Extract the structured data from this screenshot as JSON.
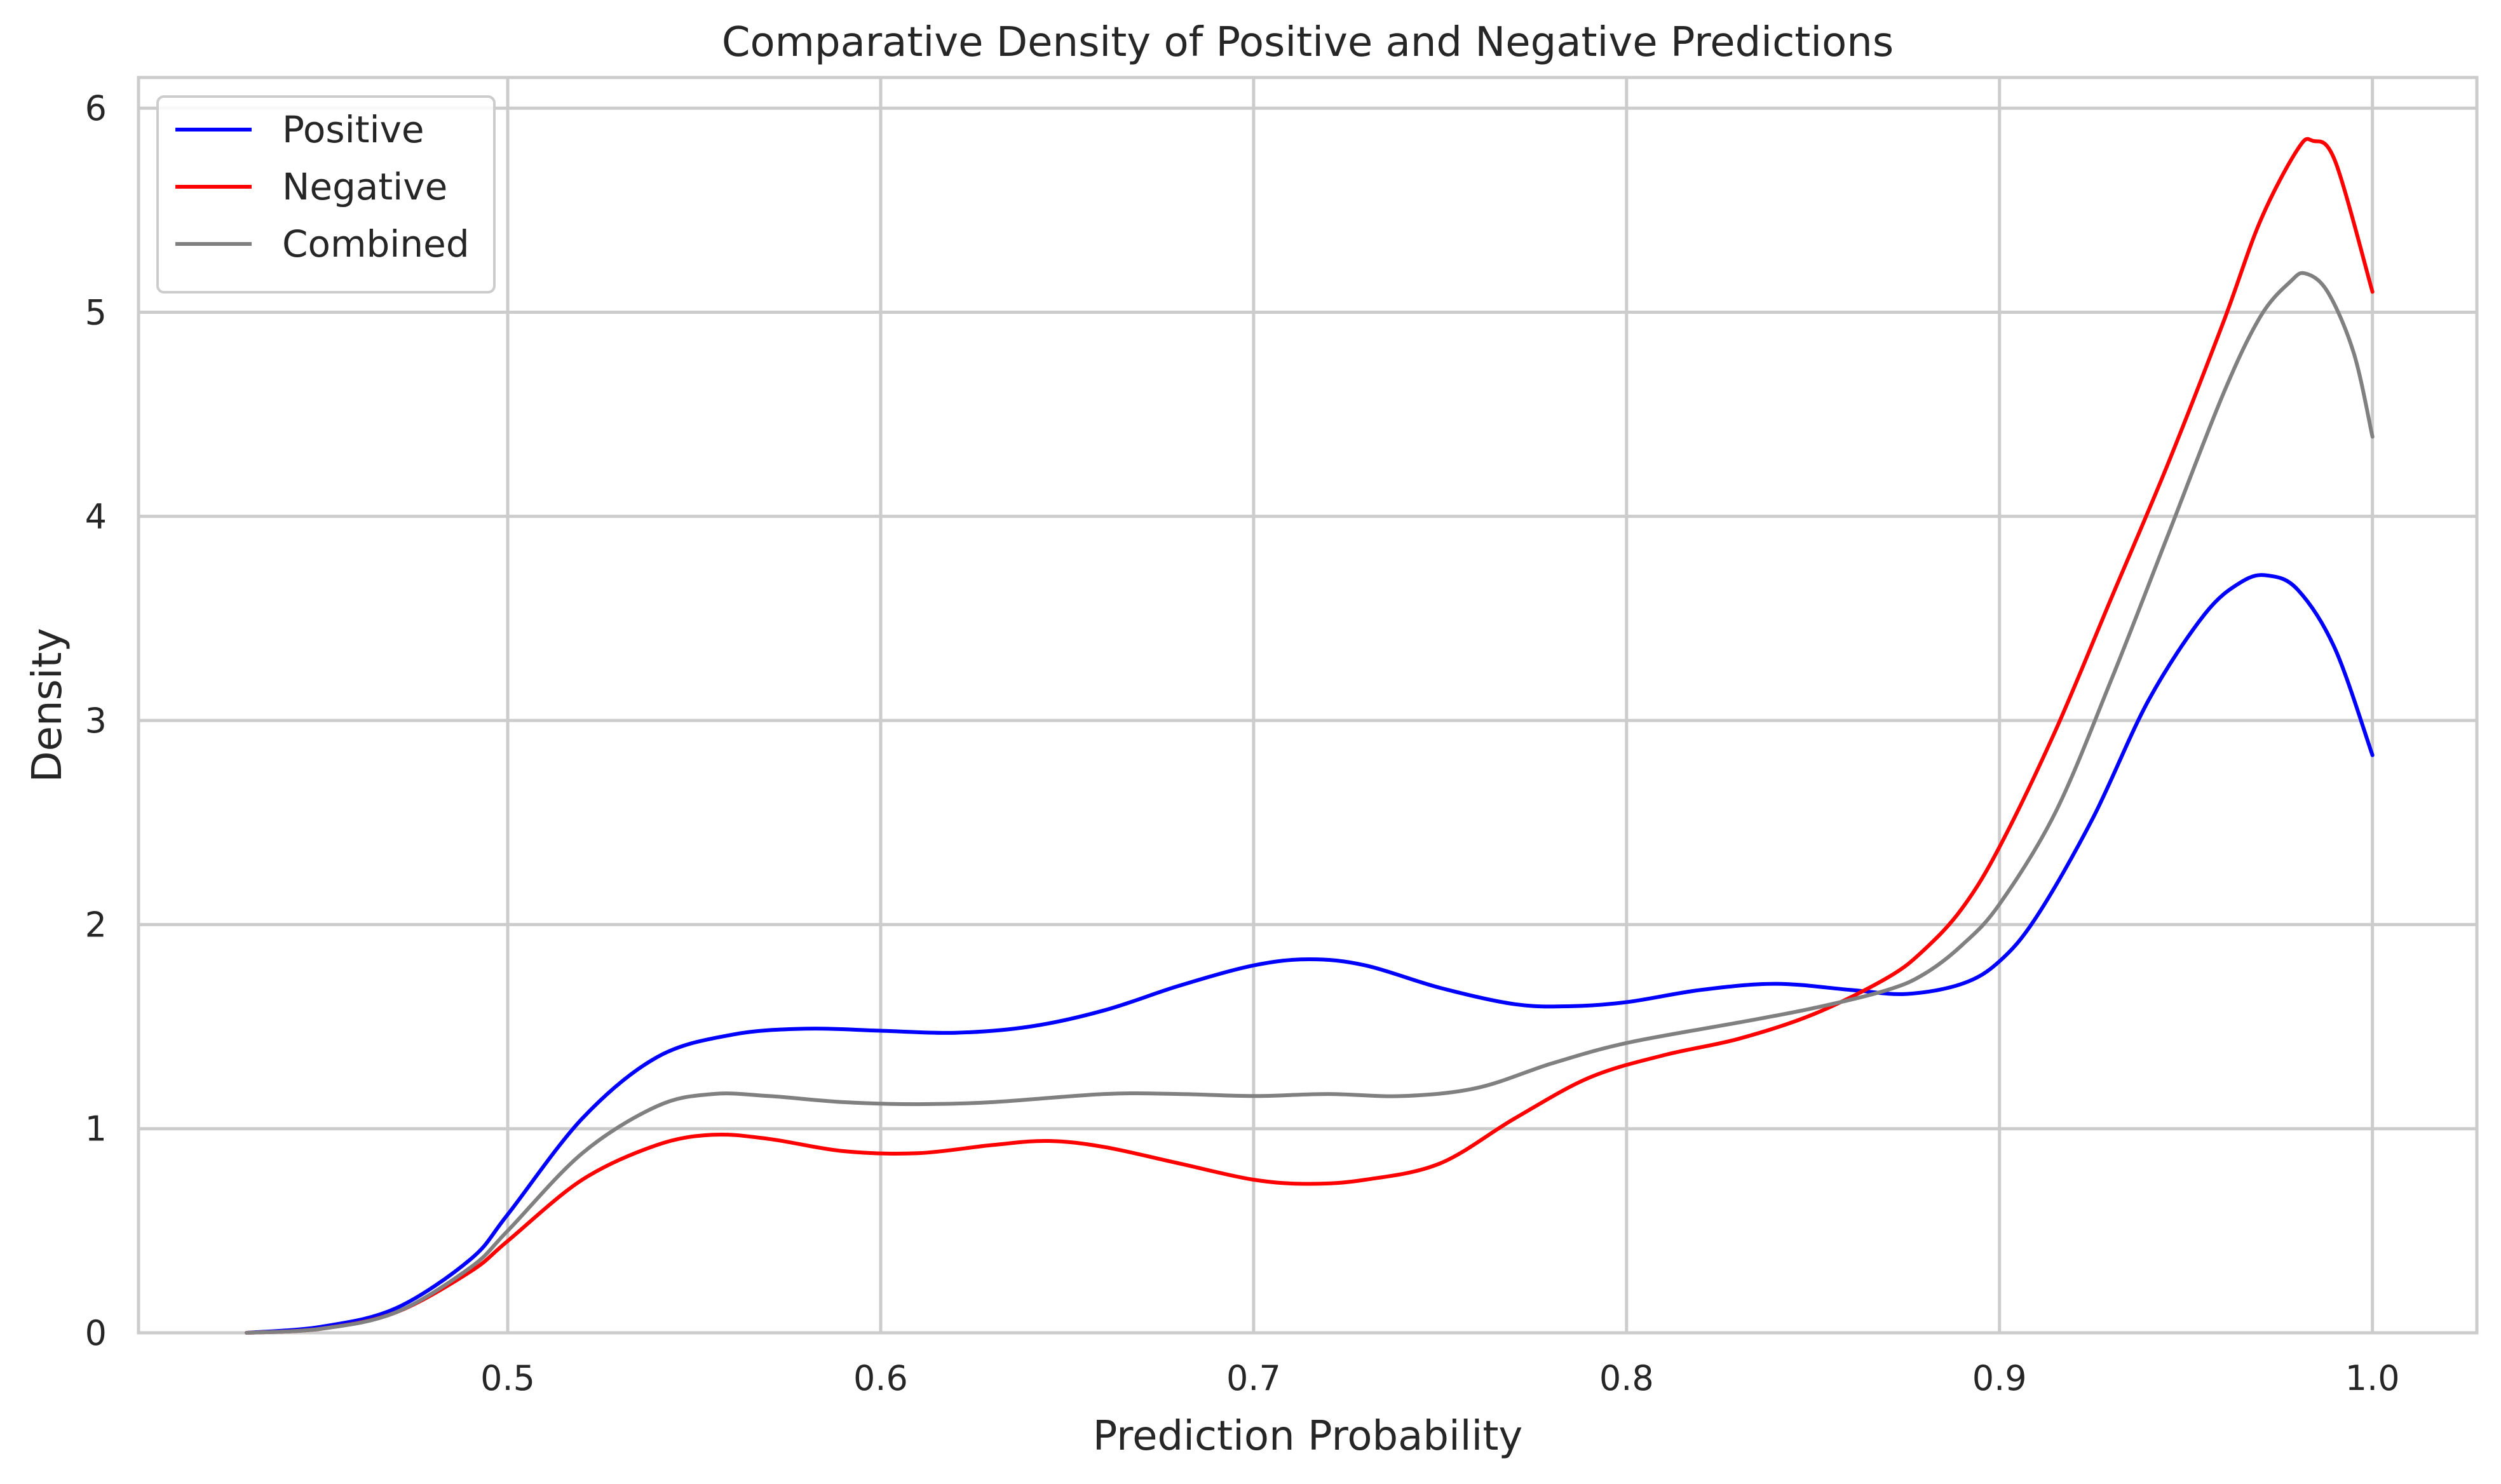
{
  "chart_data": {
    "type": "line",
    "title": "Comparative Density of Positive and Negative Predictions",
    "xlabel": "Prediction Probability",
    "ylabel": "Density",
    "xlim": [
      0.401,
      1.028
    ],
    "ylim": [
      0,
      6.15
    ],
    "xticks": [
      0.5,
      0.6,
      0.7,
      0.8,
      0.9,
      1.0
    ],
    "xtick_labels": [
      "0.5",
      "0.6",
      "0.7",
      "0.8",
      "0.9",
      "1.0"
    ],
    "yticks": [
      0,
      1,
      2,
      3,
      4,
      5,
      6
    ],
    "ytick_labels": [
      "0",
      "1",
      "2",
      "3",
      "4",
      "5",
      "6"
    ],
    "grid": true,
    "legend_position": "top-left",
    "series": [
      {
        "name": "Positive",
        "color": "#0000ff",
        "points": [
          [
            0.43,
            0.0
          ],
          [
            0.45,
            0.03
          ],
          [
            0.47,
            0.12
          ],
          [
            0.49,
            0.36
          ],
          [
            0.5,
            0.58
          ],
          [
            0.52,
            1.05
          ],
          [
            0.54,
            1.35
          ],
          [
            0.56,
            1.46
          ],
          [
            0.58,
            1.49
          ],
          [
            0.6,
            1.48
          ],
          [
            0.62,
            1.47
          ],
          [
            0.64,
            1.5
          ],
          [
            0.66,
            1.58
          ],
          [
            0.68,
            1.7
          ],
          [
            0.7,
            1.8
          ],
          [
            0.715,
            1.83
          ],
          [
            0.73,
            1.8
          ],
          [
            0.75,
            1.69
          ],
          [
            0.77,
            1.61
          ],
          [
            0.785,
            1.6
          ],
          [
            0.8,
            1.62
          ],
          [
            0.82,
            1.68
          ],
          [
            0.84,
            1.71
          ],
          [
            0.86,
            1.68
          ],
          [
            0.875,
            1.66
          ],
          [
            0.89,
            1.71
          ],
          [
            0.9,
            1.82
          ],
          [
            0.91,
            2.04
          ],
          [
            0.925,
            2.52
          ],
          [
            0.94,
            3.1
          ],
          [
            0.955,
            3.52
          ],
          [
            0.965,
            3.68
          ],
          [
            0.972,
            3.71
          ],
          [
            0.98,
            3.64
          ],
          [
            0.99,
            3.35
          ],
          [
            1.0,
            2.83
          ]
        ]
      },
      {
        "name": "Negative",
        "color": "#ff0000",
        "points": [
          [
            0.43,
            0.0
          ],
          [
            0.45,
            0.02
          ],
          [
            0.47,
            0.1
          ],
          [
            0.49,
            0.3
          ],
          [
            0.5,
            0.45
          ],
          [
            0.52,
            0.75
          ],
          [
            0.54,
            0.92
          ],
          [
            0.555,
            0.97
          ],
          [
            0.57,
            0.95
          ],
          [
            0.59,
            0.89
          ],
          [
            0.61,
            0.88
          ],
          [
            0.63,
            0.92
          ],
          [
            0.645,
            0.94
          ],
          [
            0.66,
            0.91
          ],
          [
            0.68,
            0.83
          ],
          [
            0.7,
            0.75
          ],
          [
            0.715,
            0.73
          ],
          [
            0.73,
            0.75
          ],
          [
            0.75,
            0.83
          ],
          [
            0.77,
            1.05
          ],
          [
            0.79,
            1.25
          ],
          [
            0.81,
            1.36
          ],
          [
            0.83,
            1.44
          ],
          [
            0.85,
            1.56
          ],
          [
            0.87,
            1.74
          ],
          [
            0.88,
            1.88
          ],
          [
            0.89,
            2.08
          ],
          [
            0.9,
            2.38
          ],
          [
            0.915,
            2.95
          ],
          [
            0.93,
            3.6
          ],
          [
            0.945,
            4.25
          ],
          [
            0.96,
            4.95
          ],
          [
            0.97,
            5.45
          ],
          [
            0.98,
            5.8
          ],
          [
            0.984,
            5.84
          ],
          [
            0.99,
            5.74
          ],
          [
            1.0,
            5.1
          ]
        ]
      },
      {
        "name": "Combined",
        "color": "#808080",
        "points": [
          [
            0.43,
            0.0
          ],
          [
            0.45,
            0.02
          ],
          [
            0.47,
            0.1
          ],
          [
            0.49,
            0.32
          ],
          [
            0.5,
            0.5
          ],
          [
            0.52,
            0.88
          ],
          [
            0.54,
            1.11
          ],
          [
            0.555,
            1.17
          ],
          [
            0.57,
            1.16
          ],
          [
            0.59,
            1.13
          ],
          [
            0.61,
            1.12
          ],
          [
            0.63,
            1.13
          ],
          [
            0.66,
            1.17
          ],
          [
            0.68,
            1.17
          ],
          [
            0.7,
            1.16
          ],
          [
            0.72,
            1.17
          ],
          [
            0.74,
            1.16
          ],
          [
            0.76,
            1.2
          ],
          [
            0.78,
            1.32
          ],
          [
            0.8,
            1.42
          ],
          [
            0.83,
            1.52
          ],
          [
            0.85,
            1.59
          ],
          [
            0.87,
            1.68
          ],
          [
            0.88,
            1.76
          ],
          [
            0.89,
            1.9
          ],
          [
            0.9,
            2.1
          ],
          [
            0.915,
            2.55
          ],
          [
            0.93,
            3.2
          ],
          [
            0.945,
            3.9
          ],
          [
            0.96,
            4.6
          ],
          [
            0.97,
            4.98
          ],
          [
            0.978,
            5.15
          ],
          [
            0.982,
            5.19
          ],
          [
            0.988,
            5.1
          ],
          [
            0.995,
            4.8
          ],
          [
            1.0,
            4.39
          ]
        ]
      }
    ]
  }
}
